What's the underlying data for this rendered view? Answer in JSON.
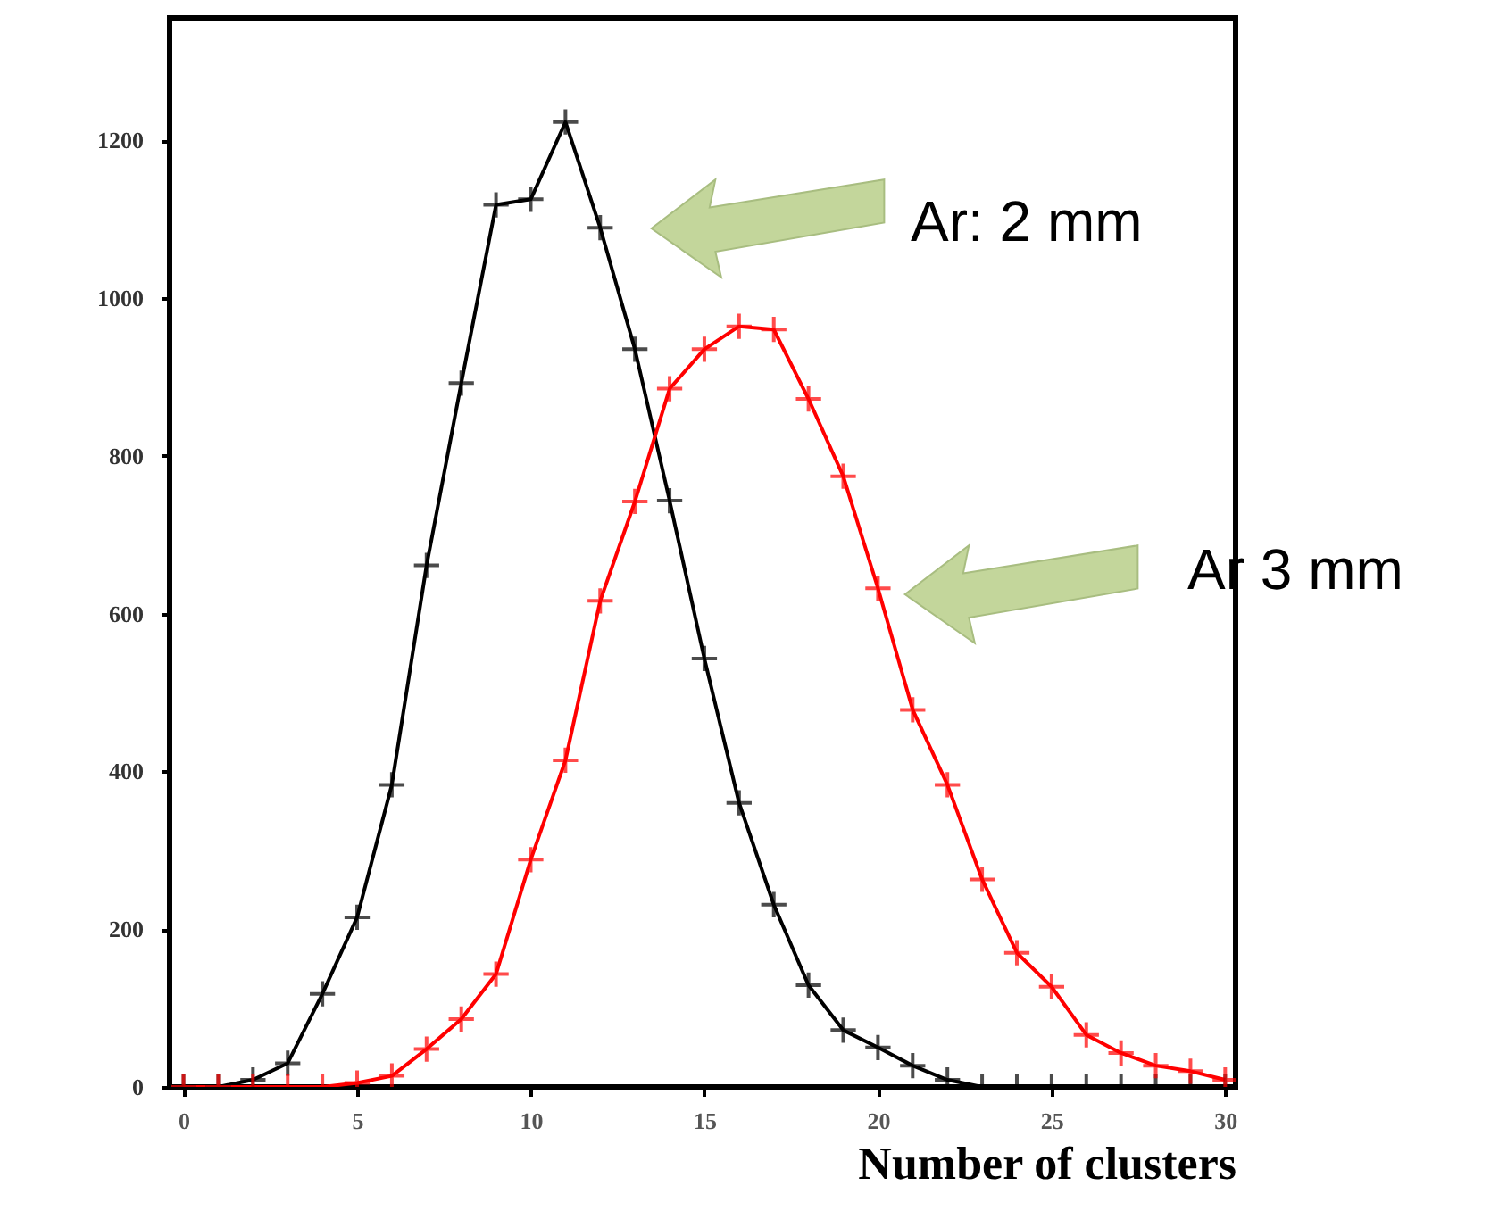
{
  "chart_data": {
    "type": "line",
    "xlabel": "Number of clusters",
    "x": [
      0,
      1,
      2,
      3,
      4,
      5,
      6,
      7,
      8,
      9,
      10,
      11,
      12,
      13,
      14,
      15,
      16,
      17,
      18,
      19,
      20,
      21,
      22,
      23,
      24,
      25,
      26,
      27,
      28,
      29,
      30
    ],
    "series": [
      {
        "color": "#000000",
        "values": [
          0,
          0,
          9,
          30,
          118,
          215,
          383,
          661,
          892,
          1118,
          1125,
          1223,
          1089,
          935,
          743,
          543,
          360,
          231,
          129,
          72,
          50,
          27,
          9,
          0,
          0,
          0,
          0,
          0,
          0,
          0,
          0
        ]
      },
      {
        "color": "#ff0000",
        "values": [
          0,
          0,
          0,
          0,
          0,
          5,
          14,
          48,
          86,
          143,
          288,
          414,
          616,
          742,
          885,
          935,
          964,
          960,
          872,
          774,
          632,
          478,
          383,
          263,
          170,
          127,
          66,
          43,
          27,
          20,
          9
        ]
      }
    ],
    "xlim": [
      -0.4,
      30.3
    ],
    "ylim": [
      0,
      1355
    ],
    "xticks": [
      0,
      5,
      10,
      15,
      20,
      25,
      30
    ],
    "yticks": [
      0,
      200,
      400,
      600,
      800,
      1000,
      1200
    ],
    "grid": false,
    "marker": "cross",
    "line_style": "solid",
    "annotations": [
      "Ar: 2 mm",
      "Ar 3 mm"
    ]
  }
}
